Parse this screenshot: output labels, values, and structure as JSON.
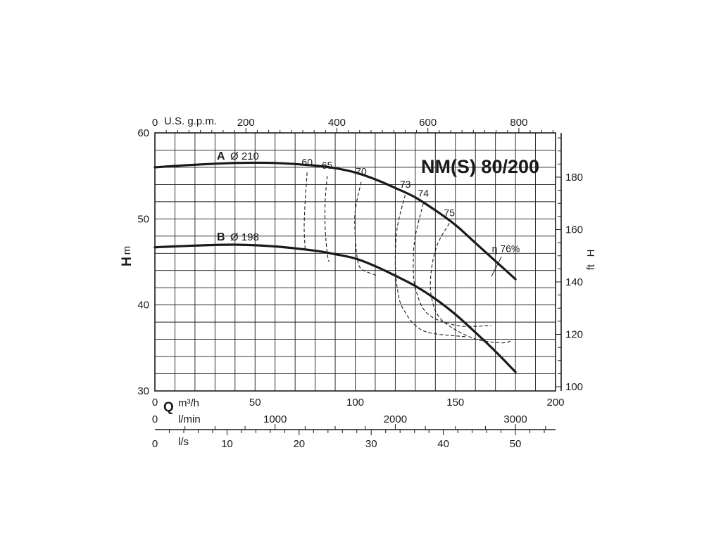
{
  "chart_data": {
    "type": "line",
    "title": "NM(S) 80/200",
    "axes": {
      "x_primary": {
        "letter": "Q",
        "unit": "m³/h",
        "range": [
          0,
          200
        ],
        "ticks": [
          0,
          50,
          100,
          150,
          200
        ],
        "minor_step": 10
      },
      "x_lpm": {
        "unit": "l/min",
        "range": [
          0,
          3333.3
        ],
        "ticks": [
          0,
          1000,
          2000,
          3000
        ],
        "minor_step": 250
      },
      "x_lps": {
        "unit": "l/s",
        "range": [
          0,
          55.56
        ],
        "ticks": [
          0,
          10,
          20,
          30,
          40,
          50
        ],
        "minor_step": 2
      },
      "x_usgpm": {
        "unit": "U.S. g.p.m.",
        "range": [
          0,
          880.6
        ],
        "ticks": [
          0,
          200,
          400,
          600,
          800
        ],
        "minor_step": 25
      },
      "y_left": {
        "letter": "H",
        "unit": "m",
        "range": [
          30,
          60
        ],
        "ticks": [
          30,
          40,
          50,
          60
        ],
        "minor_step": 2
      },
      "y_right": {
        "letter": "H",
        "unit": "ft",
        "range": [
          98.4,
          196.9
        ],
        "ticks": [
          100,
          120,
          140,
          160,
          180
        ],
        "minor_step": 5
      }
    },
    "grid": true,
    "series": [
      {
        "letter": "A",
        "name": "Ø 210",
        "x": [
          0,
          20,
          40,
          60,
          80,
          90,
          100,
          110,
          120,
          130,
          140,
          150,
          160,
          170,
          180
        ],
        "y": [
          56.0,
          56.3,
          56.5,
          56.5,
          56.2,
          55.9,
          55.4,
          54.6,
          53.6,
          52.5,
          51.0,
          49.3,
          47.2,
          45.1,
          43.0
        ]
      },
      {
        "letter": "B",
        "name": "Ø 198",
        "x": [
          0,
          20,
          40,
          60,
          80,
          90,
          100,
          110,
          120,
          130,
          140,
          150,
          160,
          170,
          180
        ],
        "y": [
          46.7,
          46.9,
          47.0,
          46.8,
          46.3,
          45.9,
          45.4,
          44.5,
          43.4,
          42.2,
          40.7,
          38.9,
          36.8,
          34.6,
          32.2
        ]
      }
    ],
    "efficiency_curves": [
      {
        "label": "60",
        "points": [
          [
            76,
            55.4
          ],
          [
            75,
            52
          ],
          [
            74.5,
            49
          ],
          [
            75,
            46.5
          ]
        ]
      },
      {
        "label": "65",
        "points": [
          [
            86,
            55.0
          ],
          [
            85,
            52
          ],
          [
            85,
            49
          ],
          [
            86,
            46
          ],
          [
            87,
            45.0
          ]
        ]
      },
      {
        "label": "70",
        "points": [
          [
            103,
            54.3
          ],
          [
            100,
            51
          ],
          [
            100,
            48
          ],
          [
            101,
            45.5
          ],
          [
            103,
            44.2
          ],
          [
            111,
            43.4
          ]
        ]
      },
      {
        "label": "73",
        "points": [
          [
            125,
            52.8
          ],
          [
            121,
            49
          ],
          [
            120,
            45
          ],
          [
            121,
            42
          ],
          [
            124,
            39.5
          ],
          [
            134,
            37
          ],
          [
            155,
            36.3
          ]
        ]
      },
      {
        "label": "74",
        "points": [
          [
            134,
            51.8
          ],
          [
            130,
            48
          ],
          [
            129,
            45
          ],
          [
            130,
            42
          ],
          [
            136,
            39
          ],
          [
            151,
            37.6
          ],
          [
            168,
            37.6
          ]
        ]
      },
      {
        "label": "75",
        "points": [
          [
            147,
            49.5
          ],
          [
            141,
            47
          ],
          [
            138,
            44
          ],
          [
            138,
            41
          ],
          [
            143,
            38.3
          ],
          [
            158,
            36.2
          ],
          [
            172,
            35.6
          ],
          [
            178,
            35.8
          ]
        ]
      }
    ],
    "efficiency_peak_label": "η 76%"
  }
}
